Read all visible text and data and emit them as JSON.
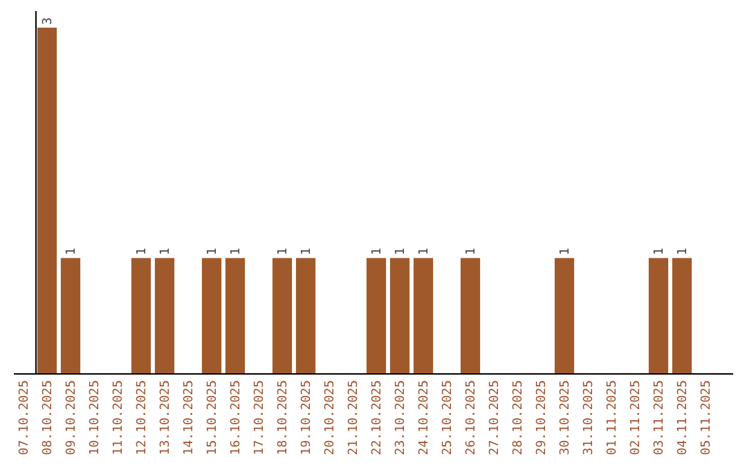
{
  "chart_data": {
    "type": "bar",
    "categories": [
      "07.10.2025",
      "08.10.2025",
      "09.10.2025",
      "10.10.2025",
      "11.10.2025",
      "12.10.2025",
      "13.10.2025",
      "14.10.2025",
      "15.10.2025",
      "16.10.2025",
      "17.10.2025",
      "18.10.2025",
      "19.10.2025",
      "20.10.2025",
      "21.10.2025",
      "22.10.2025",
      "23.10.2025",
      "24.10.2025",
      "25.10.2025",
      "26.10.2025",
      "27.10.2025",
      "28.10.2025",
      "29.10.2025",
      "30.10.2025",
      "31.10.2025",
      "01.11.2025",
      "02.11.2025",
      "03.11.2025",
      "04.11.2025",
      "05.11.2025"
    ],
    "values": [
      0,
      3,
      1,
      0,
      0,
      1,
      1,
      0,
      1,
      1,
      0,
      1,
      1,
      0,
      0,
      1,
      1,
      1,
      0,
      1,
      0,
      0,
      0,
      1,
      0,
      0,
      0,
      1,
      1,
      0
    ],
    "value_labels": [
      null,
      "3",
      "1",
      null,
      null,
      "1",
      "1",
      null,
      "1",
      "1",
      null,
      "1",
      "1",
      null,
      null,
      "1",
      "1",
      "1",
      null,
      "1",
      null,
      null,
      null,
      "1",
      null,
      null,
      null,
      "1",
      "1",
      null
    ],
    "color": "#a0592a",
    "tick_labels": "x"
  }
}
